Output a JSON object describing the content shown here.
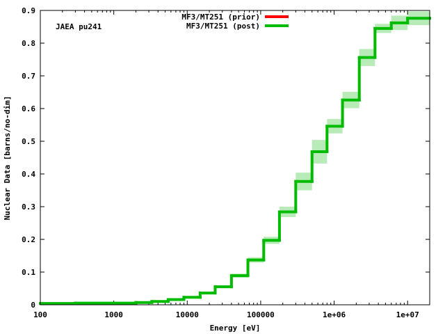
{
  "chart_data": {
    "type": "line",
    "step": true,
    "annotation": "JAEA pu241",
    "xlabel": "Energy [eV]",
    "ylabel": "Nuclear Data [barns/no-dim]",
    "x_scale": "log",
    "xlim": [
      100,
      20000000
    ],
    "ylim": [
      0,
      0.9
    ],
    "x_ticks": [
      {
        "value": 100,
        "label": "100"
      },
      {
        "value": 1000,
        "label": "1000"
      },
      {
        "value": 10000,
        "label": "10000"
      },
      {
        "value": 100000,
        "label": "100000"
      },
      {
        "value": 1000000,
        "label": "1e+06"
      },
      {
        "value": 10000000,
        "label": "1e+07"
      }
    ],
    "y_ticks": [
      {
        "value": 0,
        "label": "0"
      },
      {
        "value": 0.1,
        "label": "0.1"
      },
      {
        "value": 0.2,
        "label": "0.2"
      },
      {
        "value": 0.3,
        "label": "0.3"
      },
      {
        "value": 0.4,
        "label": "0.4"
      },
      {
        "value": 0.5,
        "label": "0.5"
      },
      {
        "value": 0.6,
        "label": "0.6"
      },
      {
        "value": 0.7,
        "label": "0.7"
      },
      {
        "value": 0.8,
        "label": "0.8"
      },
      {
        "value": 0.9,
        "label": "0.9"
      }
    ],
    "legend_position": "top-center",
    "series": [
      {
        "name": "MF3/MT251 (prior)",
        "color": "#ff0000",
        "values": []
      },
      {
        "name": "MF3/MT251 (post)",
        "color": "#00bb00",
        "band_color": "#b8ebb8",
        "bins": [
          {
            "x0": 100,
            "x1": 300,
            "y": 0.004,
            "lo": 0.004,
            "hi": 0.004
          },
          {
            "x0": 300,
            "x1": 2000,
            "y": 0.005,
            "lo": 0.005,
            "hi": 0.005
          },
          {
            "x0": 2000,
            "x1": 3300,
            "y": 0.007,
            "lo": 0.007,
            "hi": 0.007
          },
          {
            "x0": 3300,
            "x1": 5500,
            "y": 0.01,
            "lo": 0.01,
            "hi": 0.01
          },
          {
            "x0": 5500,
            "x1": 9000,
            "y": 0.016,
            "lo": 0.015,
            "hi": 0.017
          },
          {
            "x0": 9000,
            "x1": 15000,
            "y": 0.023,
            "lo": 0.021,
            "hi": 0.025
          },
          {
            "x0": 15000,
            "x1": 24000,
            "y": 0.036,
            "lo": 0.033,
            "hi": 0.039
          },
          {
            "x0": 24000,
            "x1": 40000,
            "y": 0.055,
            "lo": 0.051,
            "hi": 0.059
          },
          {
            "x0": 40000,
            "x1": 67000,
            "y": 0.089,
            "lo": 0.083,
            "hi": 0.095
          },
          {
            "x0": 67000,
            "x1": 110000,
            "y": 0.137,
            "lo": 0.129,
            "hi": 0.145
          },
          {
            "x0": 110000,
            "x1": 180000,
            "y": 0.197,
            "lo": 0.186,
            "hi": 0.208
          },
          {
            "x0": 180000,
            "x1": 300000,
            "y": 0.284,
            "lo": 0.268,
            "hi": 0.3
          },
          {
            "x0": 300000,
            "x1": 500000,
            "y": 0.377,
            "lo": 0.35,
            "hi": 0.404
          },
          {
            "x0": 500000,
            "x1": 800000,
            "y": 0.468,
            "lo": 0.432,
            "hi": 0.504
          },
          {
            "x0": 800000,
            "x1": 1300000,
            "y": 0.546,
            "lo": 0.524,
            "hi": 0.568
          },
          {
            "x0": 1300000,
            "x1": 2200000,
            "y": 0.626,
            "lo": 0.601,
            "hi": 0.651
          },
          {
            "x0": 2200000,
            "x1": 3600000,
            "y": 0.756,
            "lo": 0.73,
            "hi": 0.782
          },
          {
            "x0": 3600000,
            "x1": 6000000,
            "y": 0.845,
            "lo": 0.831,
            "hi": 0.859
          },
          {
            "x0": 6000000,
            "x1": 10000000,
            "y": 0.862,
            "lo": 0.84,
            "hi": 0.884
          },
          {
            "x0": 10000000,
            "x1": 20000000,
            "y": 0.876,
            "lo": 0.855,
            "hi": 0.897
          }
        ]
      }
    ]
  }
}
